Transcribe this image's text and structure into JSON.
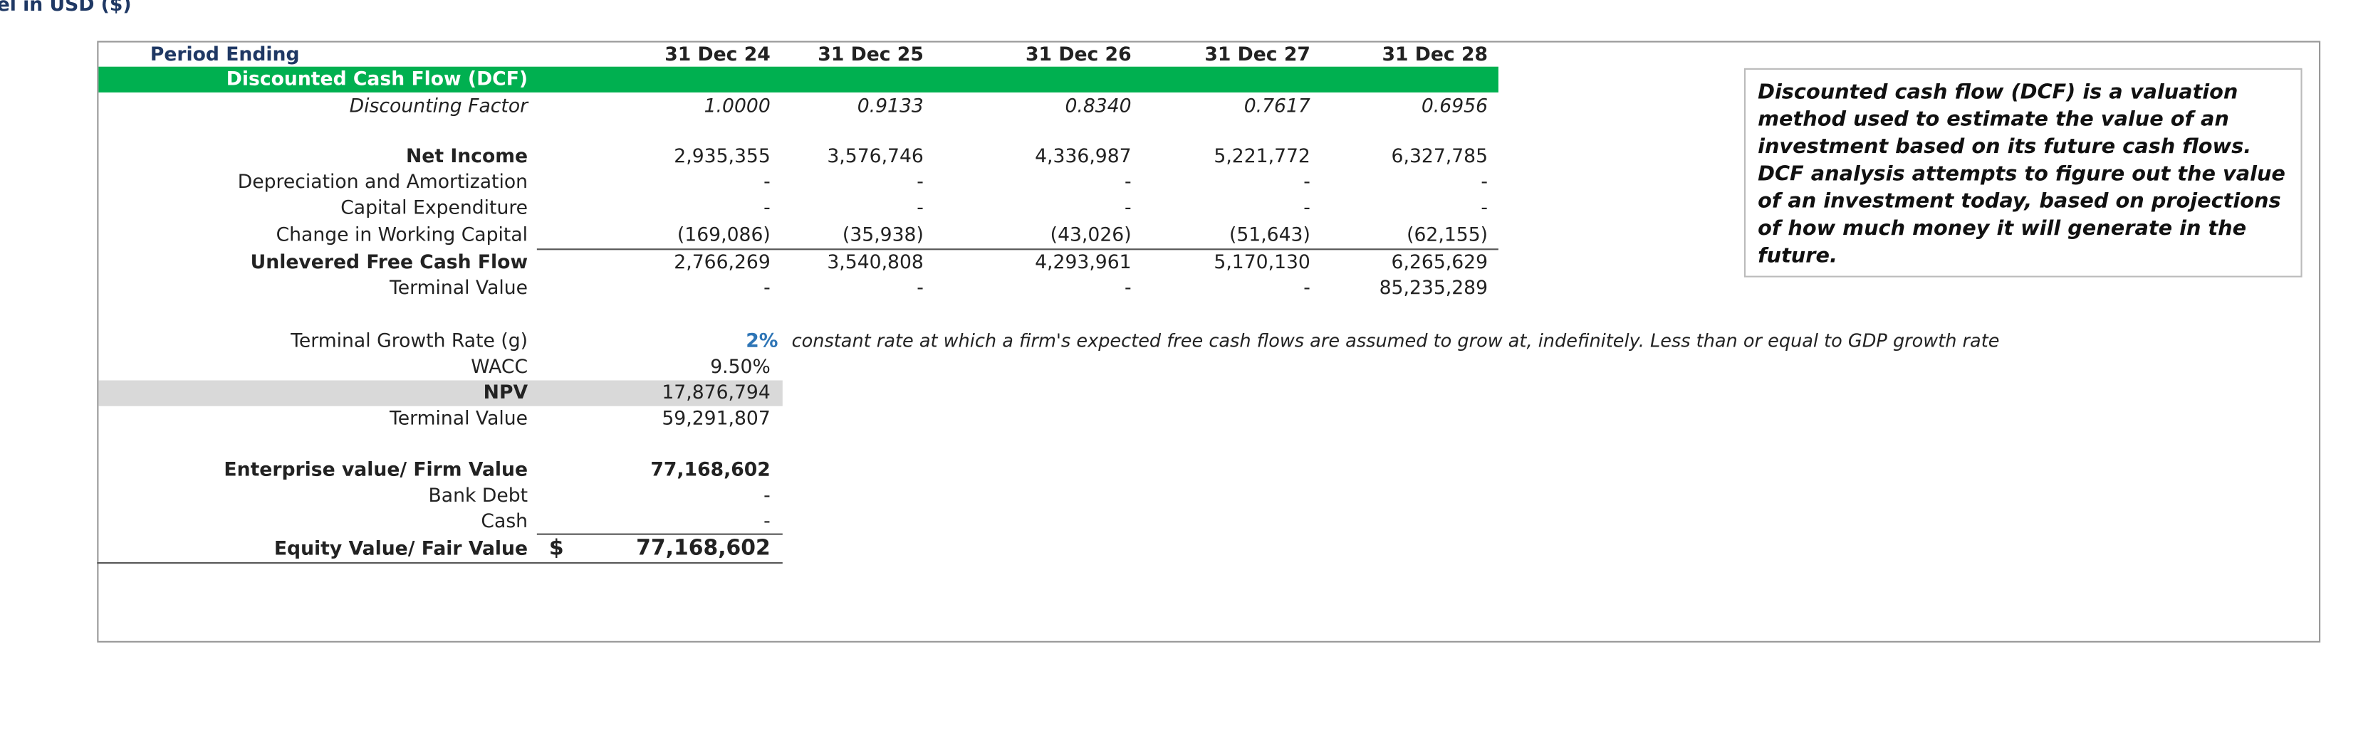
{
  "header": {
    "units_label": "el in USD ($)",
    "period_label": "Period Ending",
    "periods": [
      "31 Dec 24",
      "31 Dec 25",
      "31 Dec 26",
      "31 Dec 27",
      "31 Dec 28"
    ]
  },
  "dcf": {
    "title": "Discounted Cash Flow (DCF)",
    "rows": [
      {
        "label": "Discounting Factor",
        "values": [
          "1.0000",
          "0.9133",
          "0.8340",
          "0.7617",
          "0.6956"
        ]
      },
      {
        "label": "Net Income",
        "values": [
          "2,935,355",
          "3,576,746",
          "4,336,987",
          "5,221,772",
          "6,327,785"
        ]
      },
      {
        "label": "Depreciation and Amortization",
        "values": [
          "-",
          "-",
          "-",
          "-",
          "-"
        ]
      },
      {
        "label": "Capital Expenditure",
        "values": [
          "-",
          "-",
          "-",
          "-",
          "-"
        ]
      },
      {
        "label": "Change in Working Capital",
        "values": [
          "(169,086)",
          "(35,938)",
          "(43,026)",
          "(51,643)",
          "(62,155)"
        ]
      },
      {
        "label": "Unlevered Free Cash Flow",
        "values": [
          "2,766,269",
          "3,540,808",
          "4,293,961",
          "5,170,130",
          "6,265,629"
        ]
      },
      {
        "label": "Terminal Value",
        "values": [
          "-",
          "-",
          "-",
          "-",
          "85,235,289"
        ]
      }
    ]
  },
  "assumptions": {
    "growth_rate": {
      "label": "Terminal Growth Rate (g)",
      "value": "2%",
      "note": "constant rate at which a firm's expected free cash flows are assumed to grow at, indefinitely. Less than or equal to GDP growth rate"
    },
    "rows": [
      {
        "label": "WACC",
        "value": "9.50%"
      },
      {
        "label": "NPV",
        "value": "17,876,794"
      },
      {
        "label": "Terminal Value",
        "value": "59,291,807"
      }
    ]
  },
  "valuation": {
    "rows": [
      {
        "label": "Enterprise value/ Firm Value",
        "value": "77,168,602"
      },
      {
        "label": "Bank Debt",
        "value": "-"
      },
      {
        "label": "Cash",
        "value": "-"
      }
    ],
    "equity": {
      "label": "Equity Value/ Fair Value",
      "currency": "$",
      "value": "77,168,602"
    }
  },
  "note": "Discounted cash flow (DCF) is a valuation method used to estimate the value of an investment based on its future cash flows. DCF analysis attempts to figure out the value of an investment today, based on projections of how much money it will generate in the future."
}
